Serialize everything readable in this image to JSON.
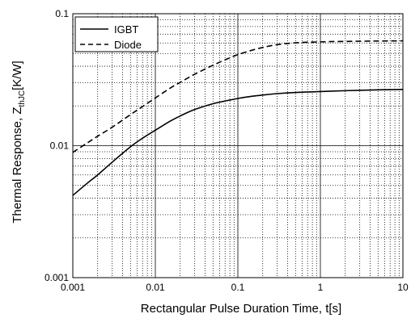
{
  "chart_data": {
    "type": "line",
    "x_scale": "log",
    "y_scale": "log",
    "xlim": [
      0.001,
      10
    ],
    "ylim": [
      0.001,
      0.1
    ],
    "xlabel": "Rectangular Pulse Duration Time, t[s]",
    "ylabel": {
      "prefix": "Thermal Response, Z",
      "subscript": "thJC",
      "suffix": "[K/W]"
    },
    "x_tick_labels": [
      "0.001",
      "0.01",
      "0.1",
      "1",
      "10"
    ],
    "y_tick_labels": [
      "0.001",
      "0.01",
      "0.1"
    ],
    "grid": {
      "major": "solid",
      "minor": "dotted"
    },
    "legend_position": "top-left",
    "series": [
      {
        "name": "IGBT",
        "line_style": "solid",
        "color": "#000000",
        "x": [
          0.001,
          0.0015,
          0.002,
          0.003,
          0.005,
          0.007,
          0.01,
          0.015,
          0.02,
          0.03,
          0.05,
          0.07,
          0.1,
          0.15,
          0.2,
          0.3,
          0.5,
          1,
          2,
          5,
          10
        ],
        "y": [
          0.0042,
          0.0052,
          0.006,
          0.0075,
          0.0098,
          0.0114,
          0.0131,
          0.0153,
          0.0168,
          0.0188,
          0.0208,
          0.0218,
          0.0228,
          0.0237,
          0.0242,
          0.0248,
          0.0253,
          0.0257,
          0.0261,
          0.0265,
          0.0267
        ]
      },
      {
        "name": "Diode",
        "line_style": "dashed",
        "color": "#000000",
        "x": [
          0.001,
          0.0015,
          0.002,
          0.003,
          0.005,
          0.007,
          0.01,
          0.015,
          0.02,
          0.03,
          0.05,
          0.07,
          0.1,
          0.15,
          0.2,
          0.3,
          0.5,
          1,
          2,
          5,
          10
        ],
        "y": [
          0.0089,
          0.0105,
          0.0118,
          0.0138,
          0.0172,
          0.0198,
          0.023,
          0.0272,
          0.0302,
          0.0348,
          0.0407,
          0.0447,
          0.049,
          0.053,
          0.0555,
          0.0583,
          0.0602,
          0.0612,
          0.0617,
          0.0621,
          0.0623
        ]
      }
    ]
  }
}
